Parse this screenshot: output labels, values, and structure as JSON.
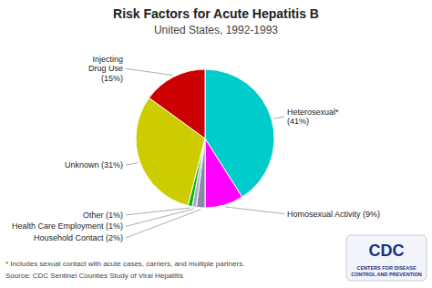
{
  "chart_data": {
    "type": "pie",
    "title": "Risk Factors for Acute Hepatitis B",
    "subtitle": "United States, 1992-1993",
    "categories": [
      "Heterosexual*\n(41%)",
      "Homosexual Activity (9%)",
      "Household Contact (2%)",
      "Health Care Employment (1%)",
      "Other (1%)",
      "Unknown (31%)",
      "Injecting\nDrug Use\n(15%)"
    ],
    "values": [
      41,
      9,
      2,
      1,
      1,
      31,
      15
    ],
    "colors": [
      "#00CCCC",
      "#FF00FF",
      "#8888AA",
      "#AAAACC",
      "#00BB00",
      "#CCCC00",
      "#CC0000"
    ],
    "annotations": [
      "* Includes sexual contact with acute cases, carriers, and multiple partners.",
      " Source: CDC Sentinel Counties Study of Viral Hepatitis",
      "CDC",
      "CENTERS FOR DISEASE\nCONTROL AND PREVENTION"
    ]
  }
}
